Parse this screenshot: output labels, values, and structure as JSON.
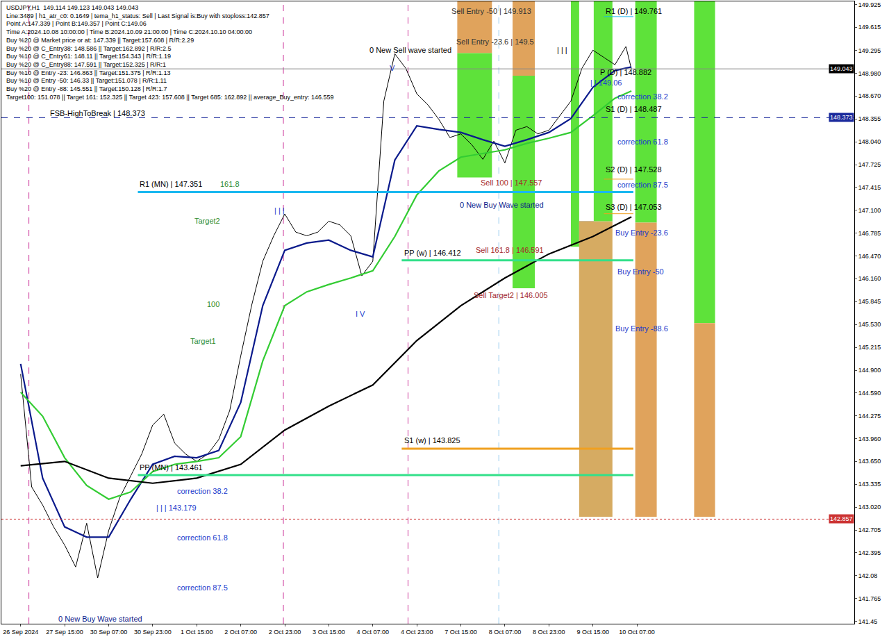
{
  "chart_data": {
    "type": "line",
    "info_lines": [
      "USDJPY,H1  149.114 149.123 149.043 149.043",
      "Line:3489 | h1_atr_c0: 0.1649 | tema_h1_status: Sell | Last Signal is:Buy with stoploss:142.857",
      "Point A:147.339 | Point B:149.357 | Point C:149.06",
      "Time A:2024.10.08 10:00:00 | Time B:2024.10.09 21:00:00 | Time C:2024.10.10 04:00:00",
      "Buy %20 @ Market price or at: 147.339 || Target:157.608 | R/R:2.29",
      "Buy %20 @ C_Entry38: 148.586 || Target:162.892 | R/R:2.5",
      "Buy %10 @ C_Entry61: 148.11 || Target:154.343 | R/R:1.19",
      "Buy %20 @ C_Entry88: 147.591 || Target:152.325 | R/R:1",
      "Buy %10 @ Entry -23: 146.863 || Target:151.375 | R/R:1.13",
      "Buy %10 @ Entry -50: 146.33 || Target:151.078 | R/R:1.11",
      "Buy %20 @ Entry -88: 145.551 || Target:150.128 | R/R:1.7",
      "Target100: 151.078 || Target 161: 152.325 || Target 423: 157.608 || Target 685: 162.892 || average_Buy_entry: 146.559"
    ],
    "xlim": [
      -7,
      303
    ],
    "xticks": [
      {
        "value": 0,
        "label": "26 Sep 2024"
      },
      {
        "value": 16,
        "label": "27 Sep 15:00"
      },
      {
        "value": 32,
        "label": "30 Sep 07:00"
      },
      {
        "value": 48,
        "label": "30 Sep 23:00"
      },
      {
        "value": 64,
        "label": "1 Oct 15:00"
      },
      {
        "value": 80,
        "label": "2 Oct 07:00"
      },
      {
        "value": 96,
        "label": "2 Oct 23:00"
      },
      {
        "value": 112,
        "label": "3 Oct 15:00"
      },
      {
        "value": 128,
        "label": "4 Oct 07:00"
      },
      {
        "value": 144,
        "label": "4 Oct 23:00"
      },
      {
        "value": 160,
        "label": "7 Oct 15:00"
      },
      {
        "value": 176,
        "label": "8 Oct 07:00"
      },
      {
        "value": 192,
        "label": "8 Oct 23:00"
      },
      {
        "value": 208,
        "label": "9 Oct 15:00"
      },
      {
        "value": 224,
        "label": "10 Oct 07:00"
      }
    ],
    "ylim": [
      141.42,
      149.97
    ],
    "yticks": [
      149.925,
      149.615,
      149.295,
      {
        "value": 148.98,
        "label": "148.980"
      },
      {
        "value": 148.67,
        "label": "148.670"
      },
      148.355,
      {
        "value": 148.04,
        "label": "148.040"
      },
      147.725,
      147.415,
      {
        "value": 147.1,
        "label": "147.100"
      },
      146.785,
      {
        "value": 146.47,
        "label": "146.470"
      },
      {
        "value": 146.16,
        "label": "146.160"
      },
      145.845,
      {
        "value": 145.53,
        "label": "145.530"
      },
      145.215,
      {
        "value": 144.9,
        "label": "144.900"
      },
      {
        "value": 144.59,
        "label": "144.590"
      },
      144.275,
      {
        "value": 143.96,
        "label": "143.960"
      },
      {
        "value": 143.65,
        "label": "143.650"
      },
      143.335,
      {
        "value": 143.02,
        "label": "143.020"
      },
      142.705,
      142.395,
      142.08,
      141.765,
      141.45
    ],
    "grid": false,
    "series": [
      {
        "color": "#000000",
        "line_style": "solid",
        "x": [
          0,
          4,
          8,
          12,
          16,
          20,
          24,
          28,
          32,
          36,
          40,
          44,
          48,
          52,
          56,
          60,
          64,
          68,
          72,
          76,
          80,
          84,
          88,
          92,
          96,
          100,
          104,
          108,
          112,
          116,
          120,
          124,
          128,
          132,
          136,
          140,
          144,
          148,
          152,
          156,
          160,
          164,
          168,
          172,
          176,
          180,
          184,
          188,
          192,
          196,
          200,
          204,
          208,
          212,
          216,
          220,
          222
        ],
        "values": [
          144.85,
          143.3,
          143.05,
          142.75,
          142.5,
          142.2,
          142.8,
          142.05,
          142.7,
          143.15,
          143.45,
          143.75,
          144.15,
          144.3,
          143.9,
          143.75,
          143.65,
          143.75,
          143.95,
          144.35,
          145.1,
          145.8,
          146.4,
          146.75,
          147.05,
          146.8,
          146.75,
          146.8,
          146.95,
          146.9,
          146.75,
          146.2,
          146.4,
          148.6,
          149.25,
          149.05,
          148.7,
          148.55,
          148.35,
          148.1,
          148.15,
          148.0,
          147.8,
          148.05,
          147.75,
          148.2,
          148.25,
          148.15,
          148.2,
          148.4,
          148.6,
          149.05,
          149.3,
          149.2,
          149.1,
          149.35,
          149.04
        ]
      },
      {
        "color": "#0a1a8c",
        "line_style": "thick",
        "x": [
          0,
          8,
          16,
          24,
          32,
          40,
          48,
          56,
          64,
          72,
          80,
          88,
          96,
          104,
          112,
          120,
          128,
          136,
          144,
          152,
          160,
          168,
          176,
          184,
          192,
          200,
          208,
          216,
          222
        ],
        "values": [
          144.99,
          143.42,
          142.75,
          142.61,
          142.61,
          143.13,
          143.61,
          143.72,
          143.7,
          143.8,
          144.46,
          145.79,
          146.55,
          146.65,
          146.69,
          146.55,
          146.46,
          147.79,
          148.26,
          148.21,
          148.17,
          148.07,
          147.98,
          148.07,
          148.17,
          148.36,
          148.79,
          149.02,
          149.07
        ]
      },
      {
        "color": "#33cc33",
        "line_style": "thick",
        "x": [
          0,
          8,
          16,
          24,
          32,
          40,
          48,
          56,
          64,
          72,
          80,
          88,
          96,
          104,
          112,
          120,
          128,
          136,
          144,
          152,
          160,
          168,
          176,
          184,
          192,
          200,
          208,
          216,
          222
        ],
        "values": [
          144.6,
          144.27,
          143.7,
          143.32,
          143.13,
          143.23,
          143.51,
          143.61,
          143.65,
          143.7,
          143.99,
          145.03,
          145.79,
          145.98,
          146.08,
          146.17,
          146.27,
          146.74,
          147.31,
          147.64,
          147.83,
          147.88,
          147.93,
          148.02,
          148.09,
          148.17,
          148.4,
          148.64,
          148.74
        ]
      },
      {
        "color": "#000000",
        "line_style": "thick",
        "x": [
          0,
          16,
          32,
          48,
          64,
          80,
          96,
          112,
          128,
          144,
          160,
          176,
          192,
          208,
          222
        ],
        "values": [
          143.59,
          143.65,
          143.42,
          143.35,
          143.42,
          143.61,
          144.08,
          144.41,
          144.7,
          145.31,
          145.79,
          146.17,
          146.5,
          146.74,
          147.01
        ]
      }
    ],
    "zones": [
      {
        "x0": 158.7,
        "x1": 171.3,
        "y0": 149.26,
        "y1": 149.97,
        "color": "#e0a35c"
      },
      {
        "x0": 158.7,
        "x1": 171.3,
        "y0": 147.55,
        "y1": 149.26,
        "color": "#5ee23a"
      },
      {
        "x0": 178.8,
        "x1": 186.9,
        "y0": 148.95,
        "y1": 149.97,
        "color": "#e0a35c"
      },
      {
        "x0": 178.8,
        "x1": 186.9,
        "y0": 146.03,
        "y1": 148.95,
        "color": "#5ee23a"
      },
      {
        "x0": 200,
        "x1": 203,
        "y0": 146.6,
        "y1": 149.97,
        "color": "#5ee23a"
      },
      {
        "x0": 203,
        "x1": 208.3,
        "y0": 145.46,
        "y1": 146.6,
        "color": "#f0b070"
      },
      {
        "x0": 203,
        "x1": 208.3,
        "y0": 146.6,
        "y1": 146.95,
        "color": "#7f8fa6"
      },
      {
        "x0": 203,
        "x1": 215.1,
        "y0": 142.89,
        "y1": 146.95,
        "color": "#d6ab62"
      },
      {
        "x0": 208.3,
        "x1": 215.1,
        "y0": 146.95,
        "y1": 149.97,
        "color": "#5ee23a"
      },
      {
        "x0": 223.4,
        "x1": 231.2,
        "y0": 146.93,
        "y1": 149.97,
        "color": "#5ee23a"
      },
      {
        "x0": 223.4,
        "x1": 231.2,
        "y0": 142.89,
        "y1": 146.93,
        "color": "#e0a35c"
      },
      {
        "x0": 244.8,
        "x1": 252.4,
        "y0": 145.55,
        "y1": 149.97,
        "color": "#5ee23a"
      },
      {
        "x0": 244.8,
        "x1": 252.4,
        "y0": 142.89,
        "y1": 145.55,
        "color": "#e0a35c"
      }
    ],
    "vertical_lines": [
      {
        "x": 3,
        "color": "#cc3399",
        "line_style": "dashed"
      },
      {
        "x": 95.5,
        "color": "#cc3399",
        "line_style": "dashed"
      },
      {
        "x": 140.8,
        "color": "#cc3399",
        "line_style": "dashed"
      },
      {
        "x": 173.8,
        "color": "#99ccee",
        "line_style": "dashed"
      }
    ],
    "levels": [
      {
        "y": 147.351,
        "x0": 42.6,
        "x1": 222.7,
        "color": "#1ab8f0",
        "line_style": "thick"
      },
      {
        "y": 146.412,
        "x0": 138.5,
        "x1": 222.7,
        "color": "#33e08a",
        "line_style": "thick"
      },
      {
        "y": 143.825,
        "x0": 138.5,
        "x1": 222.7,
        "color": "#f0a020",
        "line_style": "thick"
      },
      {
        "y": 143.461,
        "x0": 42.6,
        "x1": 222.7,
        "color": "#33e08a",
        "line_style": "thick"
      },
      {
        "y": 148.373,
        "x0": -7,
        "x1": 303,
        "color": "#1a2a9c",
        "line_style": "dashed"
      },
      {
        "y": 142.857,
        "x0": -7,
        "x1": 303,
        "color": "#cc3333",
        "line_style": "dotted"
      },
      {
        "y": 149.043,
        "x0": -7,
        "x1": 303,
        "color": "#888888",
        "line_style": "solid"
      },
      {
        "y": 149.761,
        "x0": 212,
        "x1": 222.7,
        "color": "#1ab8f0",
        "line_style": "solid"
      },
      {
        "y": 147.528,
        "x0": 212,
        "x1": 222.7,
        "color": "#f0a020",
        "line_style": "solid"
      },
      {
        "y": 147.053,
        "x0": 212,
        "x1": 222.7,
        "color": "#f0a020",
        "line_style": "solid"
      }
    ],
    "price_tags": [
      {
        "y": 149.043,
        "text": "149.043",
        "color": "#000000"
      },
      {
        "y": 148.373,
        "text": "148.373",
        "color": "#1a2a9c"
      },
      {
        "y": 142.857,
        "text": "142.857",
        "color": "#cc3333"
      }
    ],
    "labels": [
      {
        "x": 156.2,
        "y": 149.84,
        "text": "Sell Entry -50 | 149.913",
        "color": "#333333"
      },
      {
        "x": 157.9,
        "y": 149.42,
        "text": "Sell Entry -23.6 | 149.5",
        "color": "#333333"
      },
      {
        "x": 126.4,
        "y": 149.3,
        "text": "0 New Sell wave started",
        "color": "#000000"
      },
      {
        "x": 133.5,
        "y": 149.05,
        "text": "V",
        "color": "#1a3acc"
      },
      {
        "x": 91.7,
        "y": 147.1,
        "text": "| | |",
        "color": "#1a3acc"
      },
      {
        "x": 121.2,
        "y": 145.68,
        "text": "I V",
        "color": "#1a3acc"
      },
      {
        "x": 194.5,
        "y": 149.3,
        "text": "| | |",
        "color": "#000000"
      },
      {
        "x": 206.5,
        "y": 148.85,
        "text": "| | 149.06",
        "color": "#1a3acc"
      },
      {
        "x": 210,
        "y": 149.0,
        "text": "P (D) | 148.882",
        "color": "#000000"
      },
      {
        "x": 212,
        "y": 149.84,
        "text": "R1 (D) | 149.761",
        "color": "#000000"
      },
      {
        "x": 216.4,
        "y": 148.66,
        "text": "correction 38.2",
        "color": "#1a3acc"
      },
      {
        "x": 212,
        "y": 148.49,
        "text": "S1 (D) | 148.487",
        "color": "#000000"
      },
      {
        "x": 216.4,
        "y": 148.04,
        "text": "correction 61.8",
        "color": "#1a3acc"
      },
      {
        "x": 212,
        "y": 147.66,
        "text": "S2 (D) | 147.528",
        "color": "#000000"
      },
      {
        "x": 216.4,
        "y": 147.45,
        "text": "correction 87.5",
        "color": "#1a3acc"
      },
      {
        "x": 212,
        "y": 147.15,
        "text": "S3 (D) | 147.053",
        "color": "#000000"
      },
      {
        "x": 215.6,
        "y": 146.79,
        "text": "Buy Entry -23.6",
        "color": "#1a3acc"
      },
      {
        "x": 216.4,
        "y": 146.26,
        "text": "Buy Entry -50",
        "color": "#1a3acc"
      },
      {
        "x": 215.6,
        "y": 145.48,
        "text": "Buy Entry -88.6",
        "color": "#1a3acc"
      },
      {
        "x": 166.8,
        "y": 147.48,
        "text": "Sell 100 | 147.557",
        "color": "#a52a2a"
      },
      {
        "x": 159.2,
        "y": 147.17,
        "text": "0 New Buy Wave started",
        "color": "#0a1a8c"
      },
      {
        "x": 165,
        "y": 146.55,
        "text": "Sell 161.8 | 146.591",
        "color": "#a52a2a"
      },
      {
        "x": 164.2,
        "y": 145.93,
        "text": "Sell Target2 | 146.005",
        "color": "#a52a2a"
      },
      {
        "x": 138.8,
        "y": 146.52,
        "text": "PP (w) | 146.412",
        "color": "#000000"
      },
      {
        "x": 138.8,
        "y": 143.94,
        "text": "S1 (w) | 143.825",
        "color": "#000000"
      },
      {
        "x": 42.8,
        "y": 147.46,
        "text": "R1 (MN) | 147.351",
        "color": "#000000"
      },
      {
        "x": 72,
        "y": 147.46,
        "text": "161.8",
        "color": "#2e8b2e"
      },
      {
        "x": 62.7,
        "y": 146.95,
        "text": "Target2",
        "color": "#2e8b2e"
      },
      {
        "x": 67.3,
        "y": 145.81,
        "text": "100",
        "color": "#2e8b2e"
      },
      {
        "x": 61.2,
        "y": 145.3,
        "text": "Target1",
        "color": "#2e8b2e"
      },
      {
        "x": 42.8,
        "y": 143.57,
        "text": "PP (MN) | 143.461",
        "color": "#000000"
      },
      {
        "x": 56.4,
        "y": 143.24,
        "text": "correction 38.2",
        "color": "#1a3acc"
      },
      {
        "x": 48.9,
        "y": 143.01,
        "text": "| | | 143.179",
        "color": "#1a3acc"
      },
      {
        "x": 56.4,
        "y": 142.6,
        "text": "correction 61.8",
        "color": "#1a3acc"
      },
      {
        "x": 56.4,
        "y": 141.92,
        "text": "correction 87.5",
        "color": "#1a3acc"
      },
      {
        "x": 13.1,
        "y": 141.49,
        "text": "0 New Buy Wave started",
        "color": "#0a1a8c"
      },
      {
        "x": 10.1,
        "y": 148.43,
        "text": "FSB-HighToBreak | 148.373",
        "color": "#000000"
      }
    ]
  }
}
